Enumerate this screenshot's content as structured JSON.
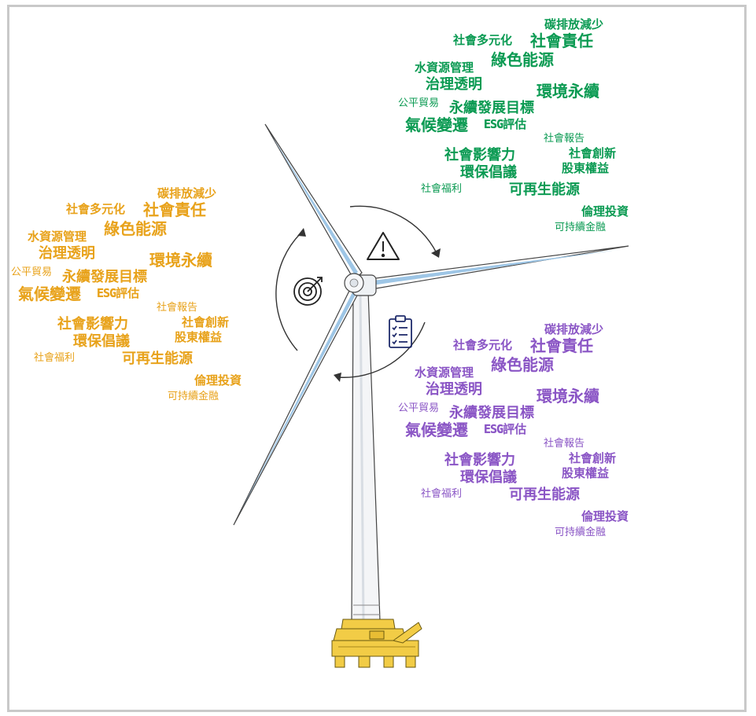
{
  "colors": {
    "cloud_top_right": "#0a9a52",
    "cloud_left": "#e8a21a",
    "cloud_bottom_right": "#8a55c5",
    "blade_fill": "#ffffff",
    "blade_shadow": "#9ec6e6",
    "tower_fill": "#f4f5f7",
    "foundation": "#f2cc46",
    "outline": "#333333"
  },
  "icons": [
    "warning-icon",
    "target-icon",
    "clipboard-checklist-icon",
    "rotation-arrows-icon"
  ],
  "word_cloud": {
    "w01": "碳排放減少",
    "w02": "社會多元化",
    "w03": "社會責任",
    "w04": "綠色能源",
    "w05": "水資源管理",
    "w06": "治理透明",
    "w07": "環境永續",
    "w08": "公平貿易",
    "w09": "永續發展目標",
    "w10": "氣候變遷",
    "w11a": "ESG",
    "w11b": "評估",
    "w12": "社會報告",
    "w13": "社會影響力",
    "w14": "社會創新",
    "w15": "環保倡議",
    "w16": "股東權益",
    "w17": "社會福利",
    "w18": "可再生能源",
    "w19": "倫理投資",
    "w20": "可持續金融"
  }
}
